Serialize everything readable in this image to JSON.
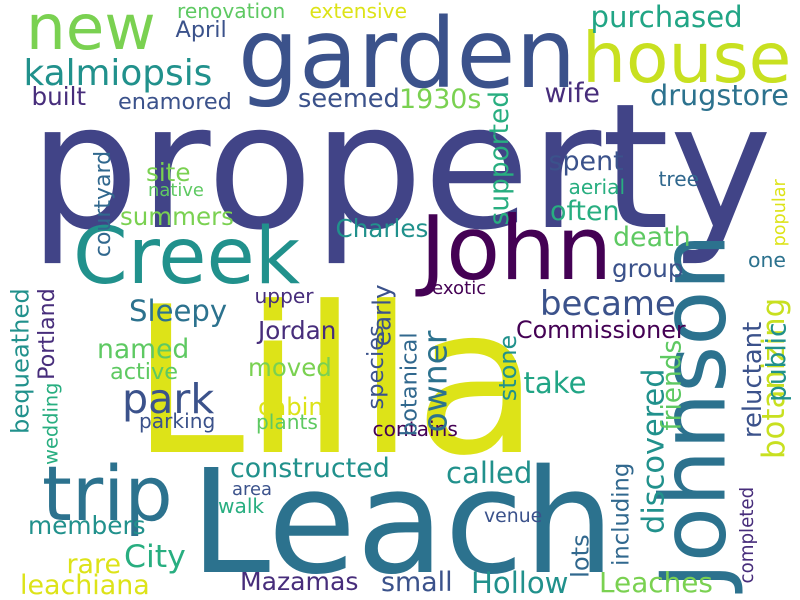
{
  "words": [
    {
      "text": "property",
      "color": "#414487",
      "rotate": false
    },
    {
      "text": "Lilla",
      "color": "#dde318",
      "rotate": false
    },
    {
      "text": "Leach",
      "color": "#2c728e",
      "rotate": false
    },
    {
      "text": "garden",
      "color": "#3b528b",
      "rotate": false
    },
    {
      "text": "Johnson",
      "color": "#2c728e",
      "rotate": true
    },
    {
      "text": "John",
      "color": "#440154",
      "rotate": false
    },
    {
      "text": "Creek",
      "color": "#21918c",
      "rotate": false
    },
    {
      "text": "house",
      "color": "#c8e020",
      "rotate": false
    },
    {
      "text": "new",
      "color": "#7ad151",
      "rotate": false
    },
    {
      "text": "trip",
      "color": "#2c728e",
      "rotate": false
    },
    {
      "text": "park",
      "color": "#3b528b",
      "rotate": false
    },
    {
      "text": "became",
      "color": "#3b528b",
      "rotate": false
    },
    {
      "text": "kalmiopsis",
      "color": "#21918c",
      "rotate": false
    },
    {
      "text": "City",
      "color": "#28ae80",
      "rotate": false
    },
    {
      "text": "purchased",
      "color": "#21a585",
      "rotate": false
    },
    {
      "text": "drugstore",
      "color": "#2c728e",
      "rotate": false
    },
    {
      "text": "seemed",
      "color": "#3b528b",
      "rotate": false
    },
    {
      "text": "1930s",
      "color": "#7ad151",
      "rotate": false
    },
    {
      "text": "built",
      "color": "#472d7b",
      "rotate": false
    },
    {
      "text": "enamored",
      "color": "#3b528b",
      "rotate": false
    },
    {
      "text": "April",
      "color": "#3b528b",
      "rotate": false
    },
    {
      "text": "renovation",
      "color": "#5ec962",
      "rotate": false
    },
    {
      "text": "extensive",
      "color": "#dde318",
      "rotate": false
    },
    {
      "text": "wife",
      "color": "#472d7b",
      "rotate": false
    },
    {
      "text": "spent",
      "color": "#3b528b",
      "rotate": false
    },
    {
      "text": "often",
      "color": "#28ae80",
      "rotate": false
    },
    {
      "text": "death",
      "color": "#5ec962",
      "rotate": false
    },
    {
      "text": "group",
      "color": "#3b528b",
      "rotate": false
    },
    {
      "text": "one",
      "color": "#2c728e",
      "rotate": false
    },
    {
      "text": "summers",
      "color": "#7ad151",
      "rotate": false
    },
    {
      "text": "site",
      "color": "#7ad151",
      "rotate": false
    },
    {
      "text": "native",
      "color": "#5ec962",
      "rotate": false
    },
    {
      "text": "aerial",
      "color": "#28ae80",
      "rotate": false
    },
    {
      "text": "tree",
      "color": "#31688e",
      "rotate": false
    },
    {
      "text": "Charles",
      "color": "#21918c",
      "rotate": false
    },
    {
      "text": "Sleepy",
      "color": "#2c728e",
      "rotate": false
    },
    {
      "text": "upper",
      "color": "#472d7b",
      "rotate": false
    },
    {
      "text": "exotic",
      "color": "#440154",
      "rotate": false
    },
    {
      "text": "Jordan",
      "color": "#472d7b",
      "rotate": false
    },
    {
      "text": "Commissioner",
      "color": "#440154",
      "rotate": false
    },
    {
      "text": "named",
      "color": "#5ec962",
      "rotate": false
    },
    {
      "text": "moved",
      "color": "#7ad151",
      "rotate": false
    },
    {
      "text": "active",
      "color": "#5ec962",
      "rotate": false
    },
    {
      "text": "take",
      "color": "#21a585",
      "rotate": false
    },
    {
      "text": "cabin",
      "color": "#dde318",
      "rotate": false
    },
    {
      "text": "parking",
      "color": "#3b528b",
      "rotate": false
    },
    {
      "text": "plants",
      "color": "#5ec962",
      "rotate": false
    },
    {
      "text": "contains",
      "color": "#440154",
      "rotate": false
    },
    {
      "text": "constructed",
      "color": "#21918c",
      "rotate": false
    },
    {
      "text": "called",
      "color": "#21918c",
      "rotate": false
    },
    {
      "text": "area",
      "color": "#3b528b",
      "rotate": false
    },
    {
      "text": "walk",
      "color": "#28ae80",
      "rotate": false
    },
    {
      "text": "venue",
      "color": "#3b528b",
      "rotate": false
    },
    {
      "text": "members",
      "color": "#21918c",
      "rotate": false
    },
    {
      "text": "rare",
      "color": "#dde318",
      "rotate": false
    },
    {
      "text": "leachiana",
      "color": "#dde318",
      "rotate": false
    },
    {
      "text": "Mazamas",
      "color": "#472d7b",
      "rotate": false
    },
    {
      "text": "small",
      "color": "#3b528b",
      "rotate": false
    },
    {
      "text": "Hollow",
      "color": "#21918c",
      "rotate": false
    },
    {
      "text": "Leaches",
      "color": "#7ad151",
      "rotate": false
    },
    {
      "text": "courtyard",
      "color": "#31688e",
      "rotate": true
    },
    {
      "text": "bequeathed",
      "color": "#21918c",
      "rotate": true
    },
    {
      "text": "Portland",
      "color": "#472d7b",
      "rotate": true
    },
    {
      "text": "early",
      "color": "#3b528b",
      "rotate": true
    },
    {
      "text": "botanical",
      "color": "#31688e",
      "rotate": true
    },
    {
      "text": "owner",
      "color": "#2c728e",
      "rotate": true
    },
    {
      "text": "stone",
      "color": "#21918c",
      "rotate": true
    },
    {
      "text": "supported",
      "color": "#28ae80",
      "rotate": true
    },
    {
      "text": "species",
      "color": "#3b528b",
      "rotate": true
    },
    {
      "text": "wedding",
      "color": "#28ae80",
      "rotate": true
    },
    {
      "text": "discovered",
      "color": "#21918c",
      "rotate": true
    },
    {
      "text": "friends",
      "color": "#5ec962",
      "rotate": true
    },
    {
      "text": "reluctant",
      "color": "#3b528b",
      "rotate": true
    },
    {
      "text": "botanizing",
      "color": "#c8e020",
      "rotate": true
    },
    {
      "text": "public",
      "color": "#21918c",
      "rotate": true
    },
    {
      "text": "popular",
      "color": "#dde318",
      "rotate": true
    },
    {
      "text": "including",
      "color": "#31688e",
      "rotate": true
    },
    {
      "text": "completed",
      "color": "#472d7b",
      "rotate": true
    },
    {
      "text": "lots",
      "color": "#31688e",
      "rotate": true
    }
  ]
}
